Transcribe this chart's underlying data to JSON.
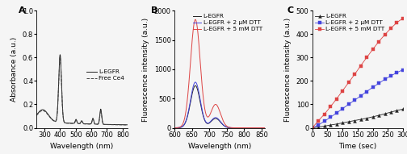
{
  "panel_A": {
    "xlabel": "Wavelength (nm)",
    "ylabel": "Absorbance (a.u.)",
    "xlim": [
      250,
      830
    ],
    "ylim": [
      0,
      1.0
    ],
    "yticks": [
      0.0,
      0.2,
      0.4,
      0.6,
      0.8,
      1.0
    ],
    "xticks": [
      300,
      400,
      500,
      600,
      700,
      800
    ],
    "legend": [
      "L-EGFR",
      "Free Ce4"
    ],
    "line_colors": [
      "#222222",
      "#444444"
    ],
    "line_styles": [
      "-",
      "--"
    ]
  },
  "panel_B": {
    "xlabel": "Wavelength (nm)",
    "ylabel": "Fluorescence intensity (a.u.)",
    "xlim": [
      600,
      860
    ],
    "ylim": [
      0,
      2000
    ],
    "yticks": [
      0,
      500,
      1000,
      1500,
      2000
    ],
    "xticks": [
      600,
      650,
      700,
      750,
      800,
      850
    ],
    "legend": [
      "L-EGFR",
      "L-EGFR + 2 μM DTT",
      "L-EGFR + 5 mM DTT"
    ],
    "line_colors": [
      "#222222",
      "#4444dd",
      "#dd4444"
    ]
  },
  "panel_C": {
    "xlabel": "Time (sec)",
    "ylabel": "Fluorescence intensity (a.u.)",
    "xlim": [
      0,
      300
    ],
    "ylim": [
      0,
      500
    ],
    "yticks": [
      0,
      100,
      200,
      300,
      400,
      500
    ],
    "xticks": [
      0,
      50,
      100,
      150,
      200,
      250,
      300
    ],
    "legend": [
      "L-EGFR",
      "L-EGFR + 2 μM DTT",
      "L-EGFR + 5 mM DTT"
    ],
    "marker_colors": [
      "#222222",
      "#4444dd",
      "#dd4444"
    ],
    "marker_shapes": [
      "^",
      "s",
      "s"
    ],
    "time_points": [
      0,
      20,
      40,
      60,
      80,
      100,
      120,
      140,
      160,
      180,
      200,
      220,
      240,
      260,
      280,
      300
    ],
    "legfr_values": [
      0,
      3,
      7,
      12,
      16,
      21,
      26,
      31,
      36,
      41,
      47,
      53,
      60,
      67,
      74,
      80
    ],
    "legfr_2um_values": [
      0,
      12,
      28,
      45,
      63,
      82,
      100,
      118,
      136,
      155,
      173,
      190,
      207,
      222,
      236,
      248
    ],
    "legfr_5mm_values": [
      0,
      30,
      58,
      90,
      123,
      158,
      193,
      228,
      265,
      300,
      335,
      368,
      398,
      425,
      450,
      468
    ]
  },
  "background_color": "#f5f5f5",
  "font_size": 6.5,
  "tick_font_size": 6,
  "legend_font_size": 5.2
}
